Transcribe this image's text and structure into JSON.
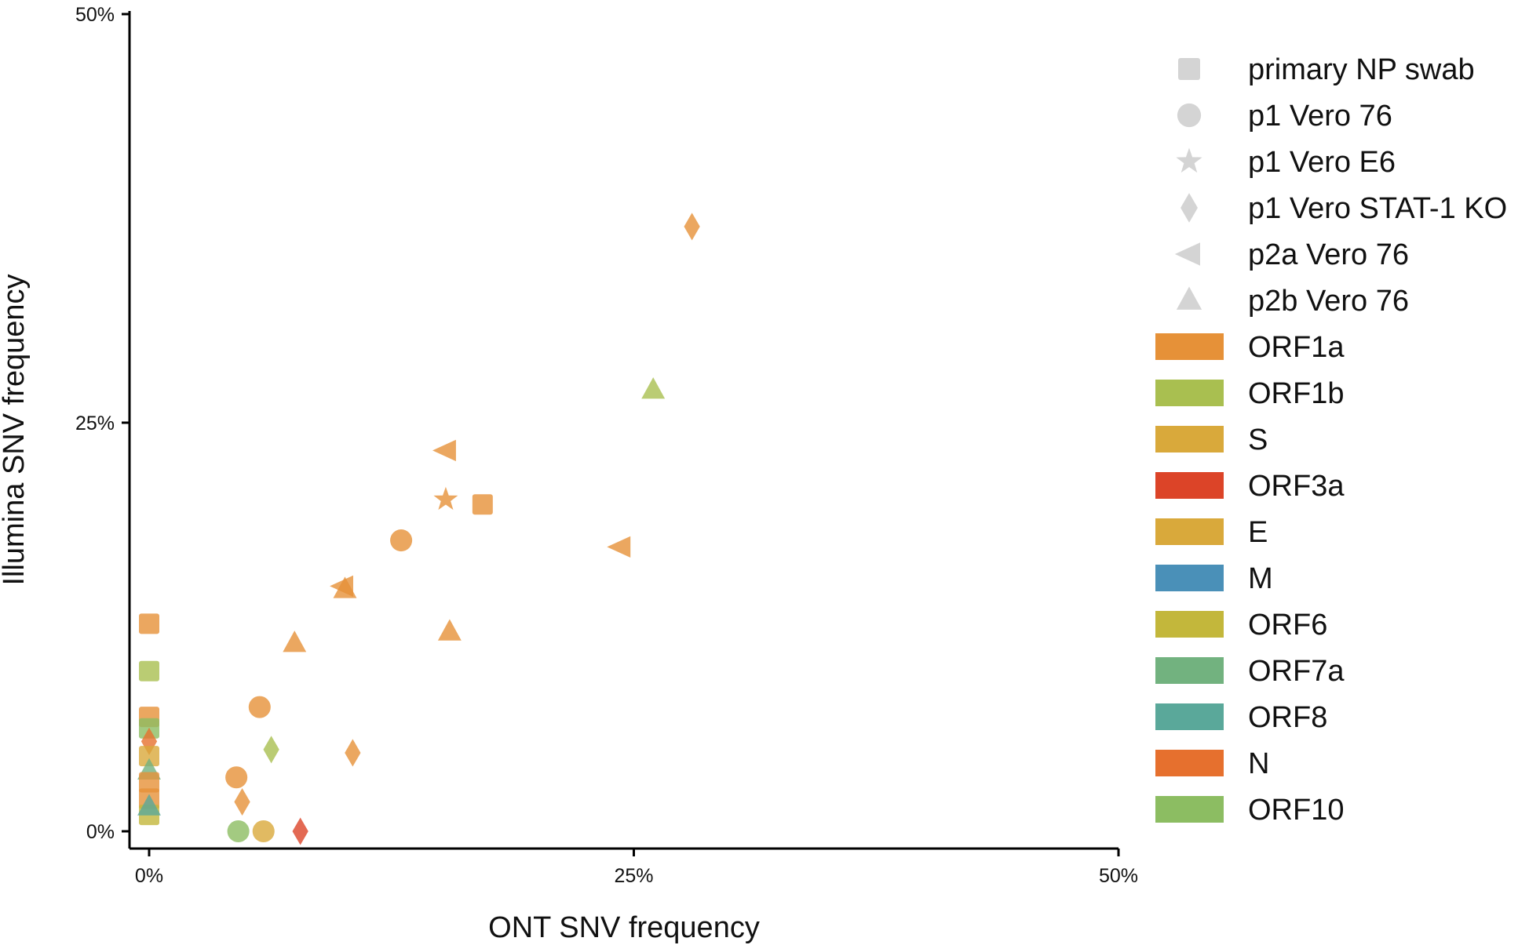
{
  "chart_data": {
    "type": "scatter",
    "xlabel": "ONT SNV frequency",
    "ylabel": "Illumina SNV frequency",
    "xlim": [
      0,
      50
    ],
    "ylim": [
      0,
      50
    ],
    "x_ticks": [
      "0%",
      "25%",
      "50%"
    ],
    "y_ticks": [
      "0%",
      "25%",
      "50%"
    ],
    "tick_values": [
      0,
      25,
      50
    ],
    "grid": false,
    "legend_position": "right",
    "sample_legend": [
      {
        "label": "primary NP swab",
        "marker": "square"
      },
      {
        "label": "p1 Vero 76",
        "marker": "circle"
      },
      {
        "label": "p1 Vero E6",
        "marker": "star"
      },
      {
        "label": "p1 Vero STAT-1 KO",
        "marker": "diamond"
      },
      {
        "label": "p2a Vero 76",
        "marker": "triangle-left"
      },
      {
        "label": "p2b Vero 76",
        "marker": "triangle-up"
      }
    ],
    "gene_legend": [
      {
        "label": "ORF1a",
        "color": "#e69138"
      },
      {
        "label": "ORF1b",
        "color": "#a9bf50"
      },
      {
        "label": "S",
        "color": "#d9a93b"
      },
      {
        "label": "ORF3a",
        "color": "#dc4428"
      },
      {
        "label": "E",
        "color": "#d9a93b"
      },
      {
        "label": "M",
        "color": "#4a90b8"
      },
      {
        "label": "ORF6",
        "color": "#c3b73b"
      },
      {
        "label": "ORF7a",
        "color": "#72b27f"
      },
      {
        "label": "ORF8",
        "color": "#5aa89a"
      },
      {
        "label": "N",
        "color": "#e6702e"
      },
      {
        "label": "ORF10",
        "color": "#8cbd62"
      }
    ],
    "points": [
      {
        "x": 28.0,
        "y": 37.0,
        "marker": "diamond",
        "gene": "ORF1a"
      },
      {
        "x": 26.0,
        "y": 27.0,
        "marker": "triangle-up",
        "gene": "ORF1b"
      },
      {
        "x": 15.3,
        "y": 23.3,
        "marker": "triangle-left",
        "gene": "ORF1a"
      },
      {
        "x": 15.3,
        "y": 20.3,
        "marker": "star",
        "gene": "ORF1a"
      },
      {
        "x": 17.2,
        "y": 20.0,
        "marker": "square",
        "gene": "ORF1a"
      },
      {
        "x": 13.0,
        "y": 17.8,
        "marker": "circle",
        "gene": "ORF1a"
      },
      {
        "x": 24.3,
        "y": 17.4,
        "marker": "triangle-left",
        "gene": "ORF1a"
      },
      {
        "x": 10.0,
        "y": 15.0,
        "marker": "triangle-left",
        "gene": "ORF1a"
      },
      {
        "x": 10.1,
        "y": 14.8,
        "marker": "triangle-up",
        "gene": "ORF1a"
      },
      {
        "x": 15.5,
        "y": 12.2,
        "marker": "triangle-up",
        "gene": "ORF1a"
      },
      {
        "x": 7.5,
        "y": 11.5,
        "marker": "triangle-up",
        "gene": "ORF1a"
      },
      {
        "x": 0.0,
        "y": 12.7,
        "marker": "square",
        "gene": "ORF1a"
      },
      {
        "x": 0.0,
        "y": 9.8,
        "marker": "square",
        "gene": "ORF1b"
      },
      {
        "x": 0.0,
        "y": 7.0,
        "marker": "square",
        "gene": "ORF1a"
      },
      {
        "x": 0.0,
        "y": 6.3,
        "marker": "square",
        "gene": "ORF10"
      },
      {
        "x": 0.0,
        "y": 5.5,
        "marker": "diamond",
        "gene": "N"
      },
      {
        "x": 0.0,
        "y": 4.6,
        "marker": "square",
        "gene": "S"
      },
      {
        "x": 0.0,
        "y": 3.7,
        "marker": "triangle-up",
        "gene": "ORF7a"
      },
      {
        "x": 0.0,
        "y": 3.0,
        "marker": "square",
        "gene": "ORF1a"
      },
      {
        "x": 0.0,
        "y": 2.0,
        "marker": "square",
        "gene": "ORF1a"
      },
      {
        "x": 0.0,
        "y": 1.0,
        "marker": "square",
        "gene": "ORF6"
      },
      {
        "x": 0.0,
        "y": 1.5,
        "marker": "triangle-up",
        "gene": "ORF8"
      },
      {
        "x": 5.7,
        "y": 7.6,
        "marker": "circle",
        "gene": "ORF1a"
      },
      {
        "x": 6.3,
        "y": 5.0,
        "marker": "diamond",
        "gene": "ORF1b"
      },
      {
        "x": 10.5,
        "y": 4.8,
        "marker": "diamond",
        "gene": "ORF1a"
      },
      {
        "x": 4.5,
        "y": 3.3,
        "marker": "circle",
        "gene": "ORF1a"
      },
      {
        "x": 4.8,
        "y": 1.8,
        "marker": "diamond",
        "gene": "ORF1a"
      },
      {
        "x": 4.6,
        "y": 0.0,
        "marker": "circle",
        "gene": "ORF10"
      },
      {
        "x": 5.9,
        "y": 0.0,
        "marker": "circle",
        "gene": "S"
      },
      {
        "x": 7.8,
        "y": 0.0,
        "marker": "diamond",
        "gene": "ORF3a"
      }
    ]
  }
}
